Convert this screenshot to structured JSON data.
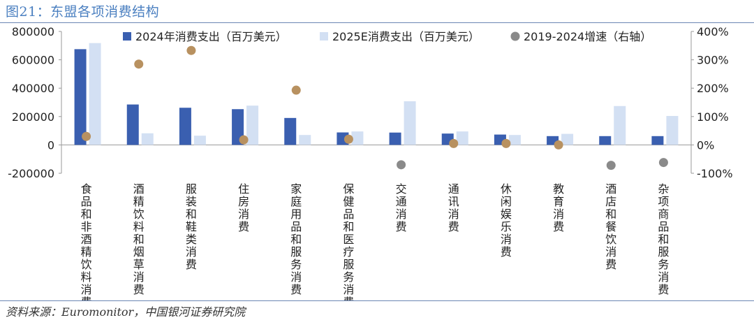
{
  "figure": {
    "title": "图21：东盟各项消费结构",
    "source": "资料来源：Euromonitor，中国银河证券研究院"
  },
  "colors": {
    "s2024": "#3a5fb0",
    "s2025": "#d3e0f3",
    "growth": "#b89160",
    "growth_neg": "#8a8a8a",
    "title": "#4a7fc0",
    "rule": "#6b86b3"
  },
  "chart_data": {
    "type": "bar",
    "categories": [
      "食品和非酒精饮料消费",
      "酒精饮料和烟草消费",
      "服装和鞋类消费",
      "住房消费",
      "家庭用品和服务消费",
      "保健品和医疗服务消费",
      "交通消费",
      "通讯消费",
      "休闲娱乐消费",
      "教育消费",
      "酒店和餐饮消费",
      "杂项商品和服务消费"
    ],
    "series": [
      {
        "name": "2024年消费支出（百万美元）",
        "axis": "left",
        "type": "bar",
        "values": [
          675000,
          285000,
          262000,
          252000,
          190000,
          88000,
          87000,
          80000,
          73000,
          62000,
          62000,
          62000
        ]
      },
      {
        "name": "2025E消费支出（百万美元）",
        "axis": "left",
        "type": "bar",
        "values": [
          718000,
          82000,
          65000,
          277000,
          70000,
          95000,
          308000,
          95000,
          70000,
          78000,
          274000,
          204000
        ]
      },
      {
        "name": "2019-2024增速（右轴）",
        "axis": "right",
        "type": "scatter",
        "values": [
          0.3,
          2.85,
          3.33,
          0.18,
          1.93,
          0.2,
          -0.7,
          0.05,
          0.05,
          0.0,
          -0.72,
          -0.62
        ]
      }
    ],
    "yleft": {
      "min": -200000,
      "max": 800000,
      "ticks": [
        "800000",
        "600000",
        "400000",
        "200000",
        "0",
        "-200000"
      ]
    },
    "yright": {
      "min": -1.0,
      "max": 4.0,
      "ticks": [
        "400%",
        "300%",
        "200%",
        "100%",
        "0%",
        "-100%"
      ]
    },
    "legend_position": "top"
  }
}
